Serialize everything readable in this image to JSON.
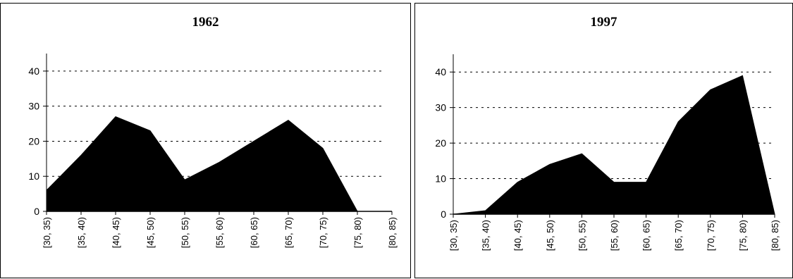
{
  "chart_data": [
    {
      "type": "area",
      "title": "1962",
      "xlabel": "",
      "ylabel": "",
      "ylim": [
        0,
        45
      ],
      "yticks": [
        "0",
        "10",
        "20",
        "30",
        "40"
      ],
      "grid": "horizontal dotted",
      "color": "#000000",
      "categories": [
        "[30, 35)",
        "[35, 40)",
        "[40, 45)",
        "[45, 50)",
        "[50, 55)",
        "[55, 60)",
        "[60, 65)",
        "[65, 70)",
        "[70, 75)",
        "[75, 80)",
        "[80, 85)"
      ],
      "values": [
        6,
        16,
        27,
        23,
        9,
        14,
        20,
        26,
        18,
        0,
        0
      ]
    },
    {
      "type": "area",
      "title": "1997",
      "xlabel": "",
      "ylabel": "",
      "ylim": [
        0,
        45
      ],
      "yticks": [
        "0",
        "10",
        "20",
        "30",
        "40"
      ],
      "grid": "horizontal dotted",
      "color": "#000000",
      "categories": [
        "[30, 35)",
        "[35, 40)",
        "[40, 45)",
        "[45, 50)",
        "[50, 55)",
        "[55, 60)",
        "[60, 65)",
        "[65, 70)",
        "[70, 75)",
        "[75, 80)",
        "[80, 85)"
      ],
      "values": [
        0,
        1,
        9,
        14,
        17,
        9,
        9,
        26,
        35,
        39,
        0
      ]
    }
  ]
}
